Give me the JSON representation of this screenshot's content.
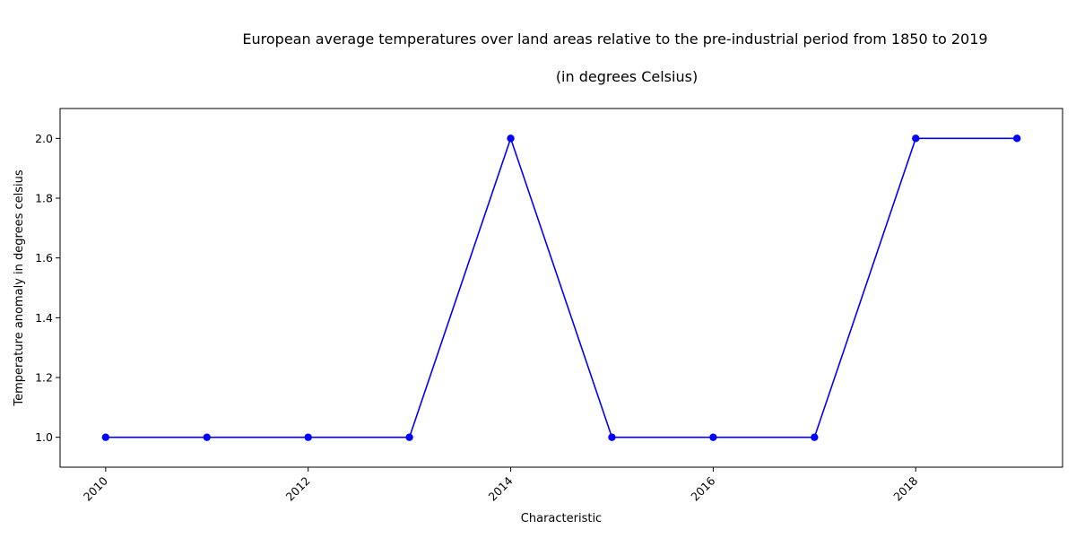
{
  "chart_data": {
    "type": "line",
    "title": "European average temperatures over land areas relative to the pre-industrial period from 1850 to 2019",
    "subtitle": "(in degrees Celsius)",
    "xlabel": "Characteristic",
    "ylabel": "Temperature anomaly in degrees celsius",
    "x": [
      2010,
      2011,
      2012,
      2013,
      2014,
      2015,
      2016,
      2017,
      2018,
      2019
    ],
    "series": [
      {
        "values": [
          1,
          1,
          1,
          1,
          2,
          1,
          1,
          1,
          2,
          2
        ],
        "color": "#0000ff",
        "marker": "circle"
      }
    ],
    "xlim": [
      2009.55,
      2019.45
    ],
    "ylim": [
      0.9,
      2.1
    ],
    "x_ticks": [
      2010,
      2012,
      2014,
      2016,
      2018
    ],
    "x_tick_labels": [
      "2010",
      "2012",
      "2014",
      "2016",
      "2018"
    ],
    "y_ticks": [
      1.0,
      1.2,
      1.4,
      1.6,
      1.8,
      2.0
    ],
    "y_tick_labels": [
      "1.0",
      "1.2",
      "1.4",
      "1.6",
      "1.8",
      "2.0"
    ],
    "x_tick_rotation": "45 degrees",
    "grid": false,
    "legend": "none"
  }
}
